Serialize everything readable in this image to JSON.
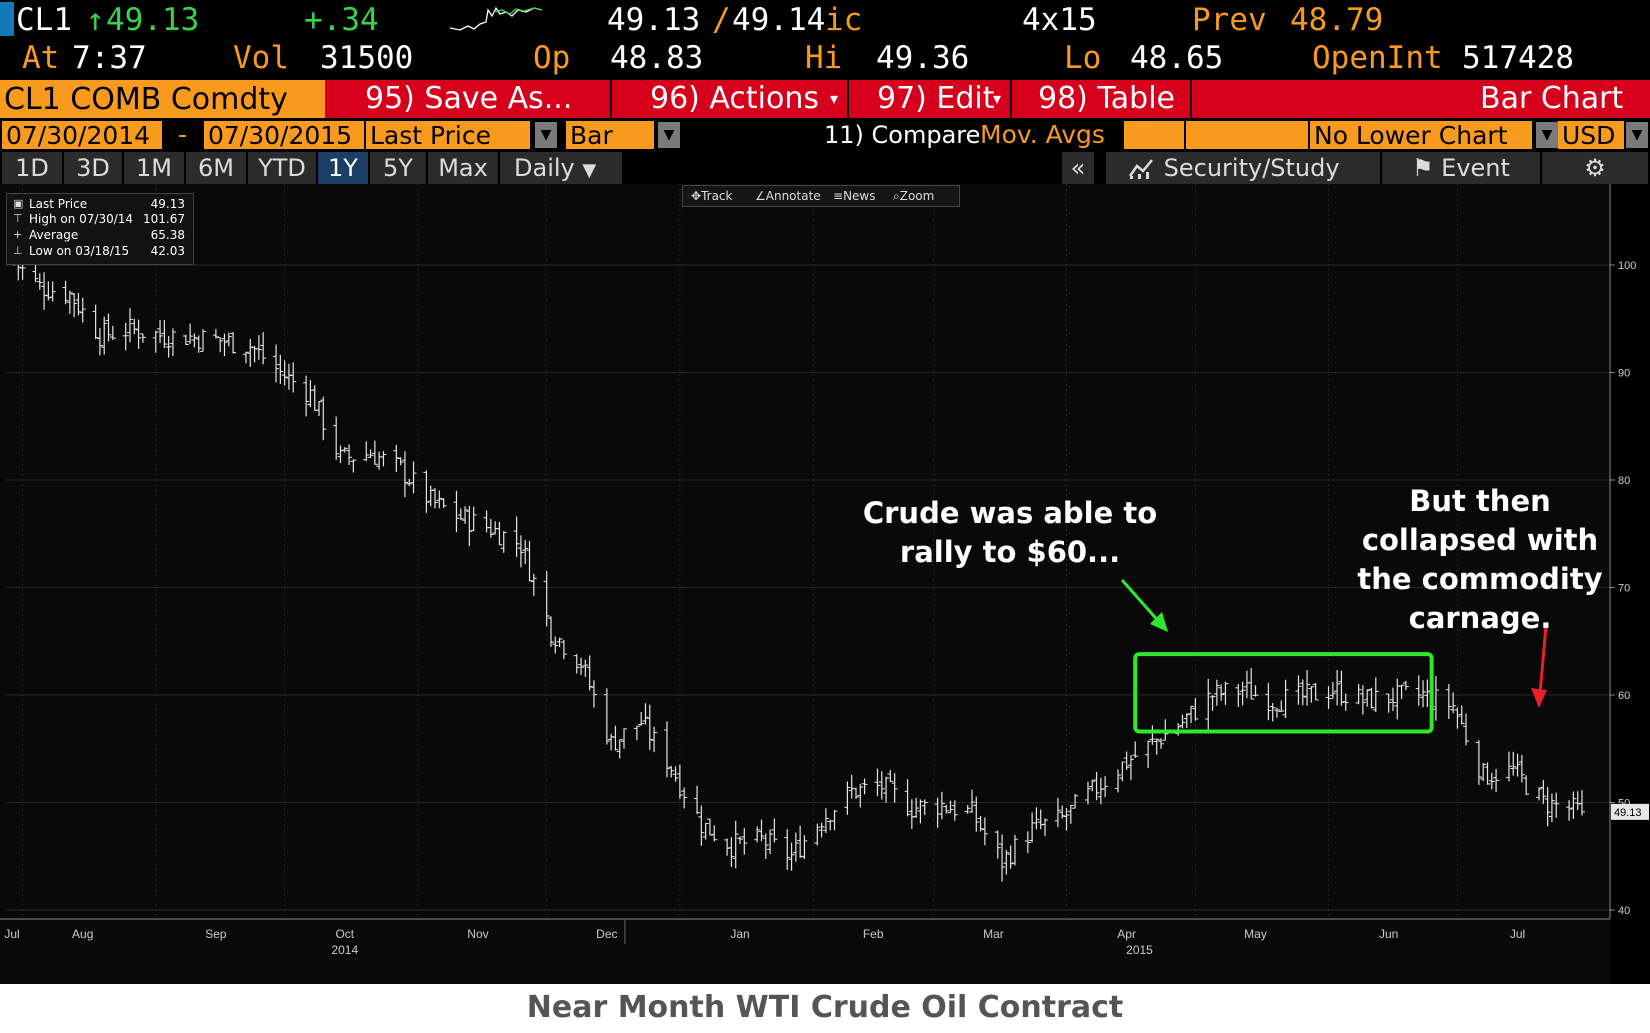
{
  "quote": {
    "ticker": "CL1",
    "arrow": "↑",
    "last": "49.13",
    "change": "+.34",
    "bid_ask_bid": "49.13",
    "bid_ask_sep": "/",
    "bid_ask_ask": "49.14",
    "bid_ask_suffix": "ic",
    "size": "4x15",
    "prev_label": "Prev",
    "prev_value": "48.79",
    "at_label": "At",
    "time": "7:37",
    "vol_label": "Vol",
    "vol_value": "31500",
    "op_label": "Op",
    "op_value": "48.83",
    "hi_label": "Hi",
    "hi_value": "49.36",
    "lo_label": "Lo",
    "lo_value": "48.65",
    "oi_label": "OpenInt",
    "oi_value": "517428"
  },
  "header": {
    "security": "CL1 COMB Comdty",
    "save_as": "95) Save As...",
    "actions": "96) Actions",
    "edit": "97) Edit",
    "table": "98) Table",
    "chart_type": "Bar Chart"
  },
  "settings": {
    "start_date": "07/30/2014",
    "dash": "-",
    "end_date": "07/30/2015",
    "field": "Last Price",
    "style": "Bar",
    "compare_label": "11) Compare",
    "mov_avgs": "Mov. Avgs",
    "lower_chart": "No Lower Chart",
    "currency": "USD"
  },
  "toolbar": {
    "tabs": [
      "1D",
      "3D",
      "1M",
      "6M",
      "YTD",
      "1Y",
      "5Y",
      "Max"
    ],
    "selected": "1Y",
    "frequency": "Daily",
    "collapse": "«",
    "security_study": "Security/Study",
    "event": "Event"
  },
  "chart_tools": {
    "track": "Track",
    "annotate": "Annotate",
    "news": "News",
    "zoom": "Zoom"
  },
  "legend": [
    {
      "label": "Last Price",
      "value": "49.13"
    },
    {
      "label": "High on 07/30/14",
      "value": "101.67"
    },
    {
      "label": "Average",
      "value": "65.38"
    },
    {
      "label": "Low on 03/18/15",
      "value": "42.03"
    }
  ],
  "annotations": {
    "rally_line1": "Crude was able to",
    "rally_line2": "rally to $60...",
    "collapse_line1": "But then",
    "collapse_line2": "collapsed with",
    "collapse_line3": "the commodity",
    "collapse_line4": "carnage."
  },
  "caption": "Near Month WTI Crude Oil Contract",
  "colors": {
    "orange": "#f79a1e",
    "red": "#d6001c",
    "highlight_green": "#2ee82e",
    "arrow_red": "#e8202a",
    "price_bars": "#e6e6e6"
  },
  "chart_data": {
    "type": "bar",
    "title": "",
    "ylim": [
      37,
      108
    ],
    "y_ticks": [
      40,
      50,
      60,
      70,
      80,
      90,
      100
    ],
    "last_price_tag": "49.13",
    "x_month_ticks": [
      "Jul",
      "Aug",
      "Sep",
      "Oct",
      "Nov",
      "Dec",
      "Jan",
      "Feb",
      "Mar",
      "Apr",
      "May",
      "Jun",
      "Jul"
    ],
    "x_year_labels": [
      {
        "label": "2014",
        "under": "Oct"
      },
      {
        "label": "2015",
        "under": "Apr"
      }
    ],
    "grid": true,
    "series": [
      {
        "x": [
          "2014-07-30",
          "2014-08-05",
          "2014-08-12",
          "2014-08-19",
          "2014-08-26",
          "2014-09-02",
          "2014-09-09",
          "2014-09-16",
          "2014-09-23",
          "2014-09-30",
          "2014-10-07",
          "2014-10-14",
          "2014-10-21",
          "2014-10-28",
          "2014-11-04",
          "2014-11-11",
          "2014-11-18",
          "2014-11-25",
          "2014-12-02",
          "2014-12-09",
          "2014-12-16",
          "2014-12-23",
          "2014-12-30",
          "2015-01-06",
          "2015-01-13",
          "2015-01-20",
          "2015-01-27",
          "2015-02-03",
          "2015-02-10",
          "2015-02-17",
          "2015-02-24",
          "2015-03-03",
          "2015-03-10",
          "2015-03-17",
          "2015-03-24",
          "2015-03-31",
          "2015-04-07",
          "2015-04-14",
          "2015-04-21",
          "2015-04-28",
          "2015-05-05",
          "2015-05-12",
          "2015-05-19",
          "2015-05-26",
          "2015-06-02",
          "2015-06-09",
          "2015-06-16",
          "2015-06-23",
          "2015-06-30",
          "2015-07-07",
          "2015-07-14",
          "2015-07-21",
          "2015-07-30"
        ],
        "close": [
          100.3,
          98.0,
          97.3,
          93.5,
          94.0,
          93.5,
          93.3,
          93.0,
          92.5,
          90.0,
          88.0,
          82.0,
          82.5,
          81.0,
          78.0,
          76.5,
          75.5,
          74.0,
          66.0,
          63.0,
          55.5,
          57.5,
          53.3,
          48.0,
          46.0,
          46.5,
          45.0,
          48.5,
          51.0,
          51.5,
          49.5,
          49.8,
          49.0,
          44.5,
          47.5,
          48.5,
          51.0,
          53.5,
          55.5,
          57.5,
          60.0,
          60.5,
          59.5,
          59.8,
          60.5,
          59.5,
          59.8,
          60.0,
          59.0,
          52.5,
          53.0,
          50.0,
          49.13
        ]
      }
    ]
  }
}
